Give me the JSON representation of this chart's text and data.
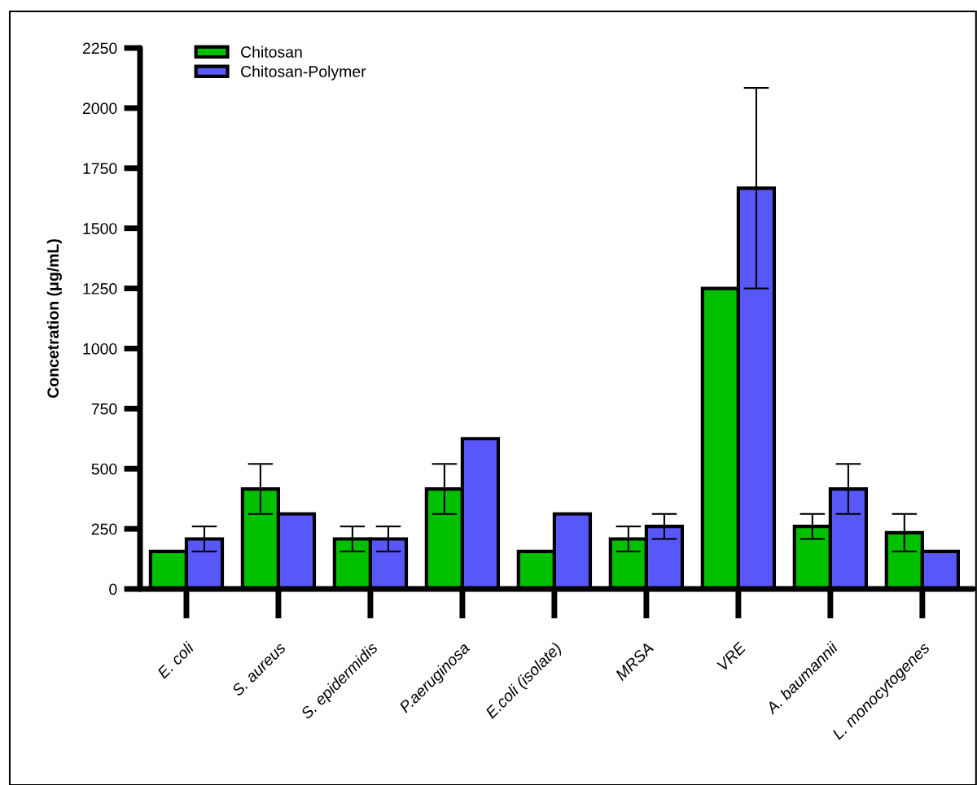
{
  "chart_data": {
    "type": "bar",
    "ylabel": "Concetration (μg/mL)",
    "categories": [
      "E. coli",
      "S. aureus",
      "S. epidermidis",
      "P.aeruginosa",
      "E.coli (isolate)",
      "MRSA",
      "VRE",
      "A. baumannii",
      "L. monocytogenes"
    ],
    "series": [
      {
        "name": "Chitosan",
        "color": "#00c000",
        "values": [
          156,
          416,
          208,
          416,
          156,
          208,
          1250,
          260,
          234
        ],
        "errors": [
          null,
          104,
          52,
          104,
          null,
          52,
          null,
          52,
          78
        ]
      },
      {
        "name": "Chitosan-Polymer",
        "color": "#5858f8",
        "values": [
          208,
          312,
          208,
          625,
          312,
          260,
          1667,
          416,
          156
        ],
        "errors": [
          52,
          null,
          52,
          null,
          null,
          52,
          417,
          104,
          null
        ]
      }
    ],
    "ylim": [
      0,
      2250
    ],
    "yticks": [
      0,
      250,
      500,
      750,
      1000,
      1250,
      1500,
      1750,
      2000,
      2250
    ],
    "grid": false,
    "legend": "top left"
  }
}
